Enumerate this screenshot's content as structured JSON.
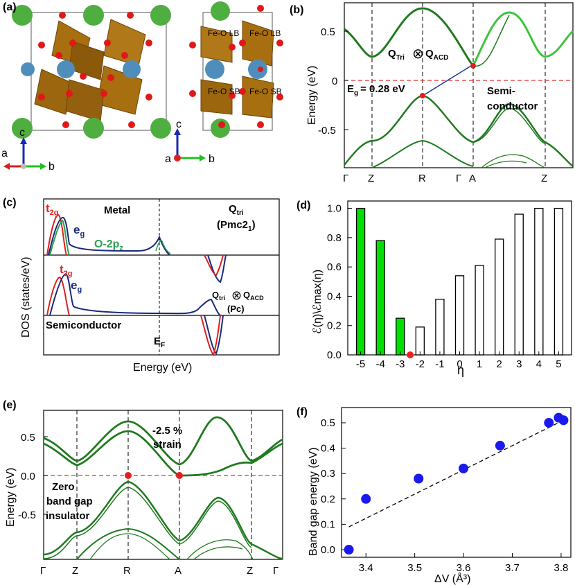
{
  "panels": {
    "a": {
      "label": "(a)",
      "atom_labels": [
        "Fe-O LB",
        "Fe-O LB",
        "Fe-O SB",
        "Fe-O SB"
      ],
      "axes_left": {
        "up": "c",
        "left": "a",
        "right": "b"
      },
      "axes_right": {
        "up": "c",
        "left": "a",
        "right": "b"
      }
    },
    "b": {
      "label": "(b)",
      "ylabel": "Energy (eV)",
      "yticks": [
        "0.5",
        "0",
        "-0.5"
      ],
      "kpoints": [
        "Γ",
        "Z",
        "R",
        "Γ",
        "A",
        "Z"
      ],
      "annot_q_left": "Q",
      "annot_q_left_sub": "Tri",
      "annot_otimes": "⊗",
      "annot_q_right": "Q",
      "annot_q_right_sub": "ACD",
      "annot_gap": "E",
      "annot_gap_sub": "g",
      "annot_gap_val": "= 0.28 eV",
      "annot_semi_1": "Semi-",
      "annot_semi_2": "conductor",
      "colors": {
        "band": "#1f7a1f",
        "band_light": "#3cc43c",
        "fermi": "#e03030",
        "marker": "#e02020",
        "arrow": "#1a3a9a"
      }
    },
    "c": {
      "label": "(c)",
      "ylabel": "DOS (states/eV)",
      "xlabel": "Energy (eV)",
      "ef_label": "E",
      "ef_sub": "F",
      "top_title": "Metal",
      "top_q": "Q",
      "top_q_sub": "tri",
      "top_group": "(Pmc2",
      "top_group_sub": "1",
      "top_group_end": ")",
      "t2g_main": "t",
      "t2g_sub": "2g",
      "eg_main": "e",
      "eg_sub": "g",
      "o2p_main": "O-2p",
      "o2p_sub": "z",
      "bottom_q1": "Q",
      "bottom_q1_sub": "tri",
      "bottom_otimes": "⊗",
      "bottom_q2": "Q",
      "bottom_q2_sub": "ACD",
      "bottom_group": "(Pc)",
      "bottom_title": "Semiconductor",
      "colors": {
        "t2g": "#e02020",
        "eg": "#1a2a7a",
        "o2p": "#2aa050"
      }
    },
    "d": {
      "label": "(d)",
      "ylabel": "ℰ(η)\\ℰmax(η)",
      "xlabel": "η",
      "yticks": [
        "0.0",
        "0.2",
        "0.4",
        "0.6",
        "0.8",
        "1.0"
      ]
    },
    "e": {
      "label": "(e)",
      "ylabel": "Energy (eV)",
      "yticks": [
        "0.5",
        "0.0",
        "-0.5"
      ],
      "kpoints": [
        "Γ",
        "Z",
        "R",
        "A",
        "Z",
        "Γ"
      ],
      "annot_strain_1": "-2.5 %",
      "annot_strain_2": "strain",
      "annot_zero_1": "Zero",
      "annot_zero_2": "band gap",
      "annot_zero_3": "insulator"
    },
    "f": {
      "label": "(f)",
      "ylabel": "Band gap energy (eV)",
      "xlabel": "ΔV (Å³)",
      "xticks": [
        "3.4",
        "3.5",
        "3.6",
        "3.7",
        "3.8"
      ],
      "yticks": [
        "0.0",
        "0.1",
        "0.2",
        "0.3",
        "0.4",
        "0.5"
      ],
      "colors": {
        "point": "#1a1aee",
        "fit": "#000000"
      }
    }
  },
  "chart_data": [
    {
      "type": "bar",
      "panel": "d",
      "categories": [
        "-5",
        "-4",
        "-3",
        "-2",
        "-1",
        "0",
        "1",
        "2",
        "3",
        "4",
        "5"
      ],
      "values": [
        1.0,
        0.78,
        0.25,
        0.19,
        0.38,
        0.54,
        0.61,
        0.79,
        0.96,
        1.0,
        1.0
      ],
      "highlighted": [
        true,
        true,
        true,
        false,
        false,
        false,
        false,
        false,
        false,
        false,
        false
      ],
      "marker_at": -2.5,
      "ylim": [
        0,
        1.05
      ],
      "colors": {
        "highlight": "#00e000",
        "plain": "#ffffff",
        "marker": "#ee2020"
      }
    },
    {
      "type": "scatter",
      "panel": "f",
      "x": [
        3.365,
        3.4,
        3.508,
        3.6,
        3.675,
        3.775,
        3.795,
        3.805
      ],
      "y": [
        0.0,
        0.2,
        0.28,
        0.32,
        0.41,
        0.5,
        0.52,
        0.51
      ],
      "fit": {
        "x": [
          3.365,
          3.81
        ],
        "y": [
          0.09,
          0.515
        ]
      },
      "xlim": [
        3.35,
        3.82
      ],
      "ylim": [
        -0.03,
        0.56
      ]
    }
  ]
}
